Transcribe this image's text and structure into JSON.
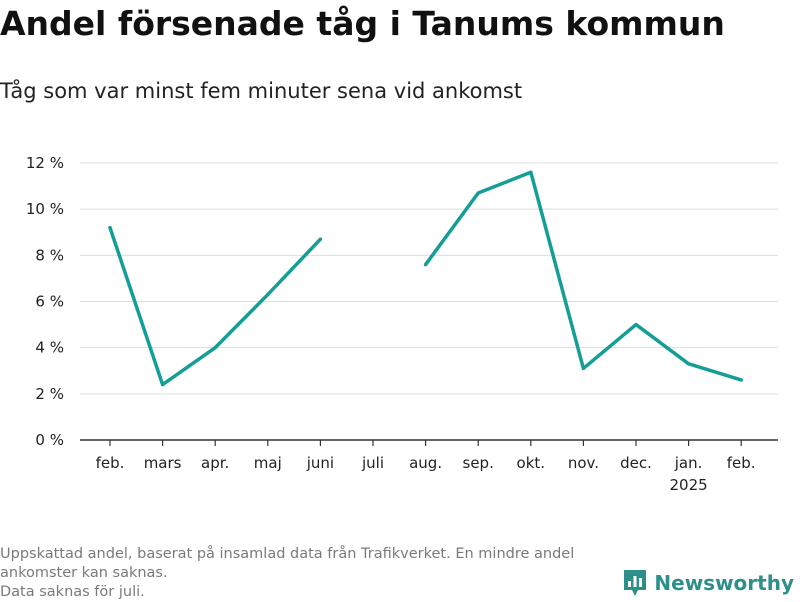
{
  "title": "Andel försenade tåg i Tanums kommun",
  "subtitle": "Tåg som var minst fem minuter sena vid ankomst",
  "footnote": {
    "line1": "Uppskattad andel, baserat på insamlad data från Trafikverket. En mindre andel",
    "line2": "ankomster kan saknas.",
    "line3": "Data saknas för juli."
  },
  "brand": {
    "name": "Newsworthy",
    "icon": "newsworthy-logo-icon",
    "color": "#2e8f8a"
  },
  "chart_data": {
    "type": "line",
    "title": "Andel försenade tåg i Tanums kommun",
    "subtitle": "Tåg som var minst fem minuter sena vid ankomst",
    "categories": [
      "feb.",
      "mars",
      "apr.",
      "maj",
      "juni",
      "juli",
      "aug.",
      "sep.",
      "okt.",
      "nov.",
      "dec.",
      "jan.",
      "feb."
    ],
    "category_sublabels": [
      "",
      "",
      "",
      "",
      "",
      "",
      "",
      "",
      "",
      "",
      "",
      "2025",
      ""
    ],
    "series": [
      {
        "values": [
          9.2,
          2.4,
          4.0,
          6.3,
          8.7,
          null,
          7.6,
          10.7,
          11.6,
          3.1,
          5.0,
          3.3,
          2.6
        ],
        "color": "#149e96"
      }
    ],
    "ylim": [
      0,
      12
    ],
    "yticks": [
      0,
      2,
      4,
      6,
      8,
      10,
      12
    ],
    "ytick_labels": [
      "0 %",
      "2 %",
      "4 %",
      "6 %",
      "8 %",
      "10 %",
      "12 %"
    ],
    "grid": true,
    "xlabel": "",
    "ylabel": ""
  }
}
